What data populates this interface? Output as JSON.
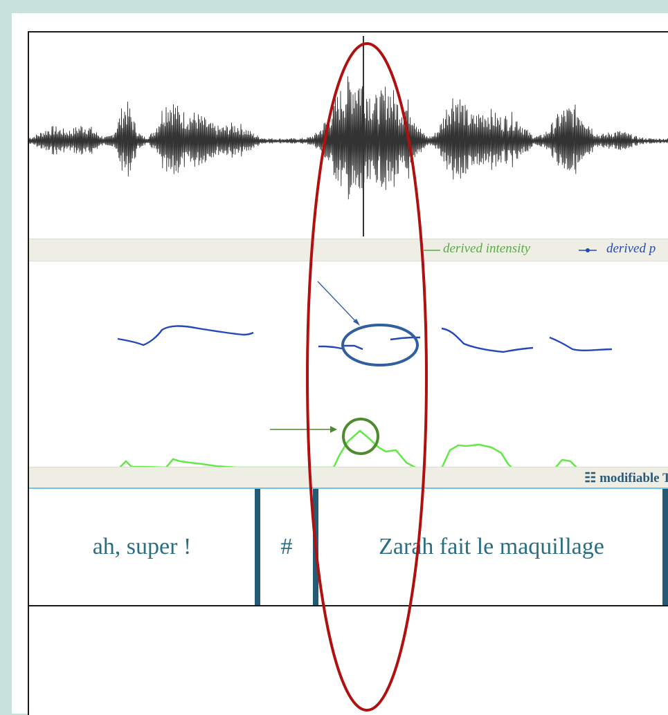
{
  "legend": {
    "intensity_label": "derived intensity",
    "pitch_label": "derived p",
    "tier_label": "modifiable TextG",
    "intensity_color": "#5aa84a",
    "pitch_color": "#2448b8"
  },
  "segments": [
    {
      "text": "ah, super !"
    },
    {
      "text": "#"
    },
    {
      "text": "Zarah fait le maquillage"
    }
  ],
  "annotations": {
    "highlight_color": "#b01010",
    "pitch_circle_color": "#2f5fa0",
    "intensity_circle_color": "#4e8a2e"
  },
  "icons": {
    "tier_icon": "list-lines-icon"
  }
}
